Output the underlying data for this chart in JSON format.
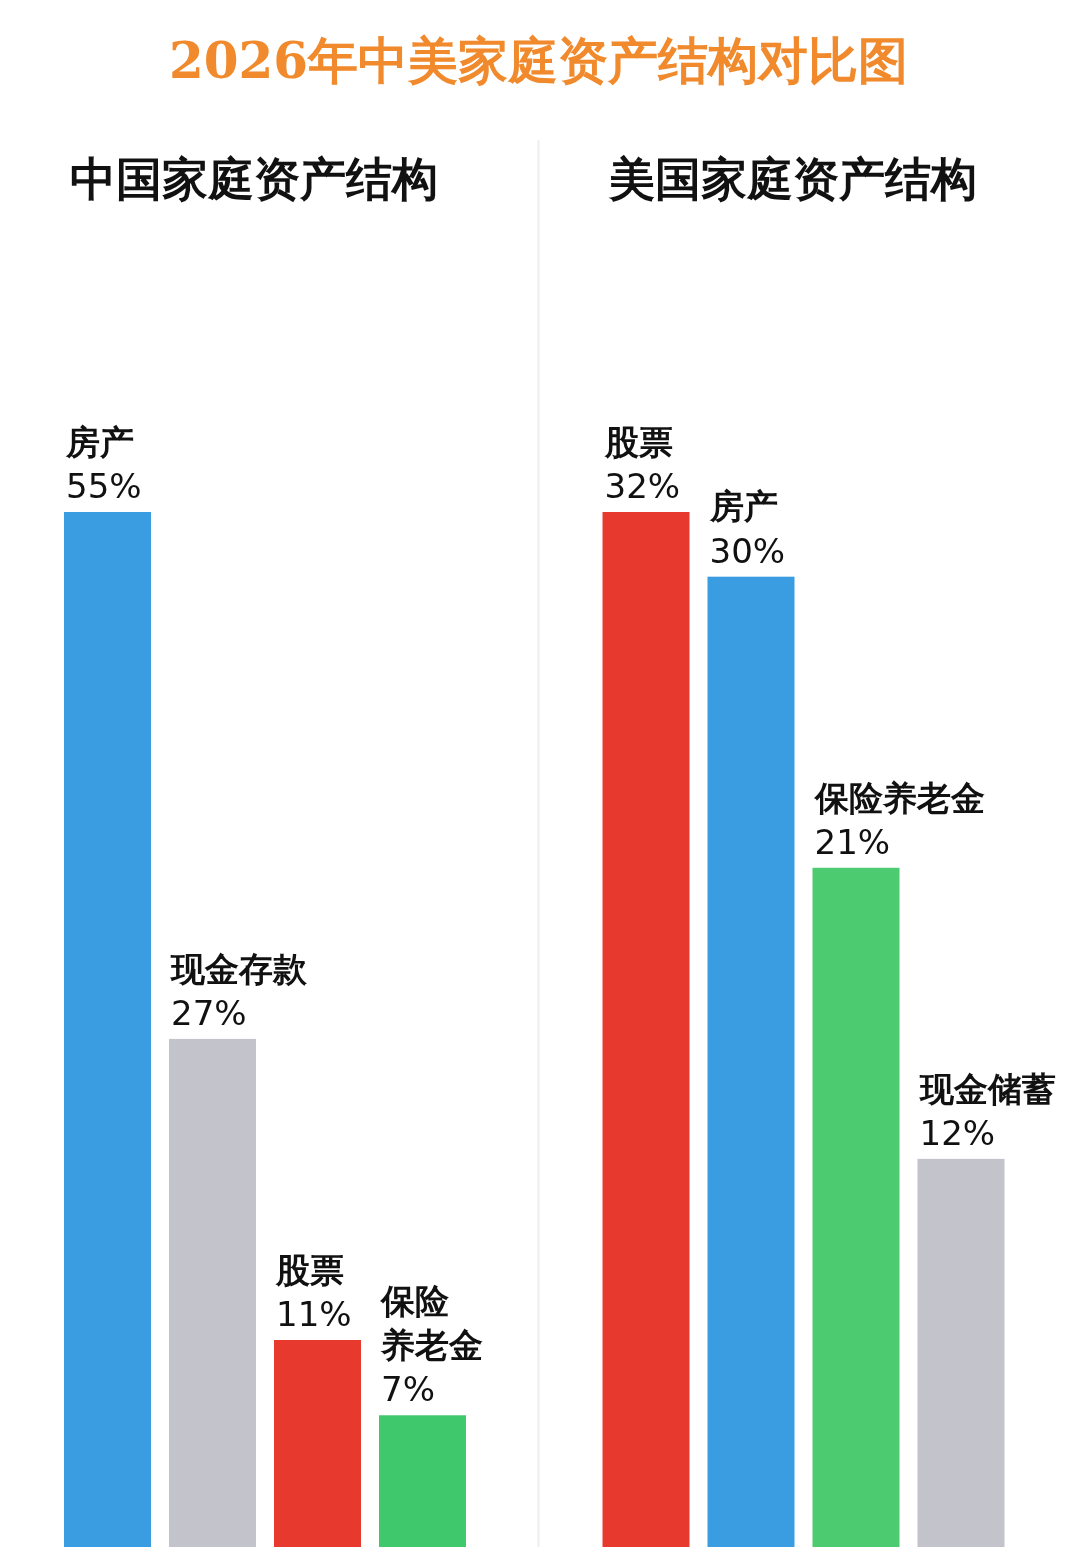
{
  "chart_data": [
    {
      "type": "bar",
      "title": "2026年中美家庭资产结构对比图",
      "subtitle": "中国家庭资产结构",
      "categories": [
        "房产",
        "现金存款",
        "股票",
        "保险养老金"
      ],
      "values": [
        55,
        27,
        11,
        7
      ],
      "colors": [
        "#3a9de2",
        "#c3c3cb",
        "#e8392f",
        "#3fc96c"
      ],
      "value_labels": [
        "55%",
        "27%",
        "11%",
        "7%"
      ]
    },
    {
      "type": "bar",
      "subtitle": "美国家庭资产结构",
      "categories": [
        "股票",
        "房产",
        "保险养老金",
        "现金储蓄"
      ],
      "values": [
        32,
        30,
        21,
        12
      ],
      "colors": [
        "#e8392f",
        "#3a9de2",
        "#4ccb70",
        "#c3c3cb"
      ],
      "value_labels": [
        "32%",
        "30%",
        "21%",
        "12%"
      ]
    }
  ]
}
